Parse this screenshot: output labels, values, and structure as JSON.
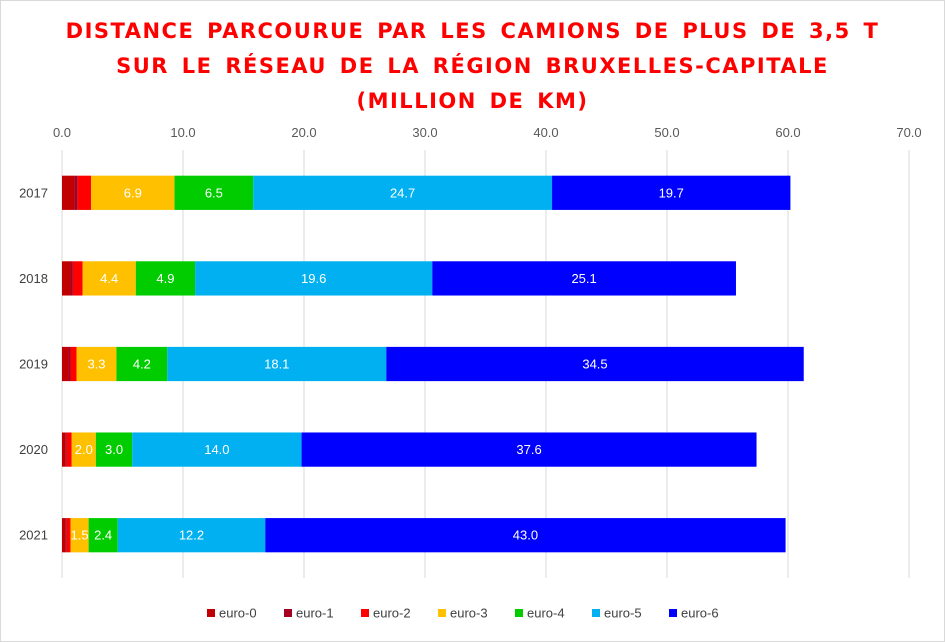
{
  "chart_data": {
    "type": "bar",
    "orientation": "horizontal",
    "stacked": true,
    "title_lines": [
      "DISTANCE PARCOURUE PAR LES CAMIONS DE PLUS DE 3,5 T",
      "SUR LE RÉSEAU DE LA RÉGION BRUXELLES-CAPITALE",
      "(MILLION DE KM)"
    ],
    "categories": [
      "2017",
      "2018",
      "2019",
      "2020",
      "2021"
    ],
    "xlim": [
      0,
      70
    ],
    "x_ticks": [
      "0.0",
      "10.0",
      "20.0",
      "30.0",
      "40.0",
      "50.0",
      "60.0",
      "70.0"
    ],
    "x_axis_position": "top",
    "grid": true,
    "legend_position": "bottom",
    "series": [
      {
        "name": "euro-0",
        "color": "#c00000",
        "values": [
          1.0,
          0.7,
          0.5,
          0.3,
          0.3
        ],
        "labels": [
          "",
          "",
          "",
          "",
          ""
        ]
      },
      {
        "name": "euro-1",
        "color": "#a50021",
        "values": [
          0.3,
          0.2,
          0.2,
          0.1,
          0.1
        ],
        "labels": [
          "",
          "",
          "",
          "",
          ""
        ]
      },
      {
        "name": "euro-2",
        "color": "#ff0000",
        "values": [
          1.1,
          0.8,
          0.5,
          0.4,
          0.3
        ],
        "labels": [
          "",
          "",
          "",
          "",
          ""
        ]
      },
      {
        "name": "euro-3",
        "color": "#ffc000",
        "values": [
          6.9,
          4.4,
          3.3,
          2.0,
          1.5
        ],
        "labels": [
          "6.9",
          "4.4",
          "3.3",
          "2.0",
          "1.5"
        ]
      },
      {
        "name": "euro-4",
        "color": "#00cc00",
        "values": [
          6.5,
          4.9,
          4.2,
          3.0,
          2.4
        ],
        "labels": [
          "6.5",
          "4.9",
          "4.2",
          "3.0",
          "2.4"
        ]
      },
      {
        "name": "euro-5",
        "color": "#00b0f0",
        "values": [
          24.7,
          19.6,
          18.1,
          14.0,
          12.2
        ],
        "labels": [
          "24.7",
          "19.6",
          "18.1",
          "14.0",
          "12.2"
        ]
      },
      {
        "name": "euro-6",
        "color": "#0000ff",
        "values": [
          19.7,
          25.1,
          34.5,
          37.6,
          43.0
        ],
        "labels": [
          "19.7",
          "25.1",
          "34.5",
          "37.6",
          "43.0"
        ]
      }
    ]
  }
}
